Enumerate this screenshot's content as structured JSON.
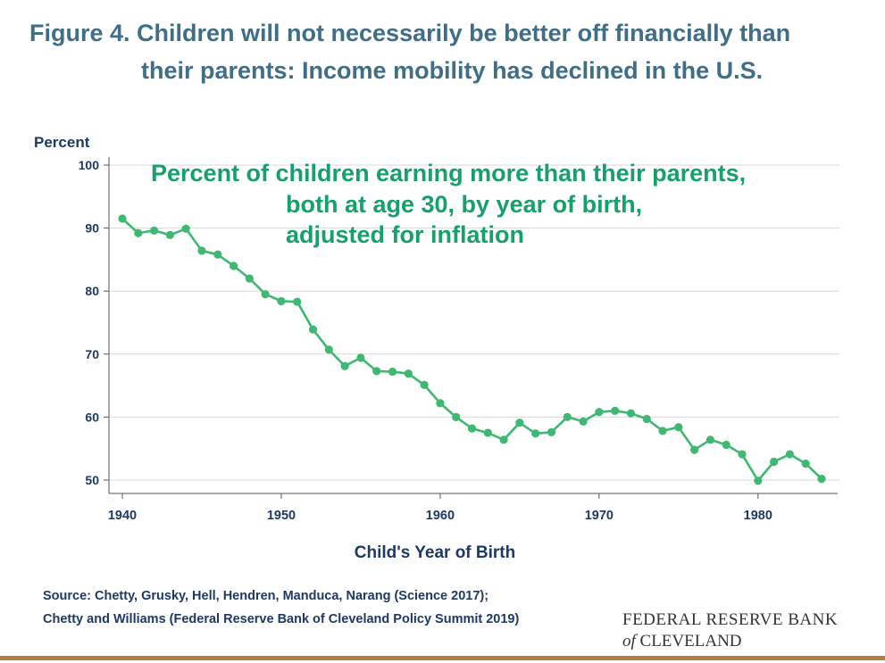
{
  "header": {
    "title_line1": "Figure 4. Children will not necessarily be better off financially than",
    "title_line2": "their parents: Income mobility has declined in the U.S."
  },
  "chart_data": {
    "type": "line",
    "ylabel": "Percent",
    "xlabel": "Child's Year of Birth",
    "annotation": [
      "Percent of children earning more than their parents,",
      "both at age 30, by year of birth,",
      "adjusted for inflation"
    ],
    "xlim": [
      1940,
      1984
    ],
    "ylim": [
      48,
      100
    ],
    "xticks": [
      1940,
      1950,
      1960,
      1970,
      1980
    ],
    "yticks": [
      50,
      60,
      70,
      80,
      90,
      100
    ],
    "grid": true,
    "series": [
      {
        "x": [
          1940,
          1941,
          1942,
          1943,
          1944,
          1945,
          1946,
          1947,
          1948,
          1949,
          1950,
          1951,
          1952,
          1953,
          1954,
          1955,
          1956,
          1957,
          1958,
          1959,
          1960,
          1961,
          1962,
          1963,
          1964,
          1965,
          1966,
          1967,
          1968,
          1969,
          1970,
          1971,
          1972,
          1973,
          1974,
          1975,
          1976,
          1977,
          1978,
          1979,
          1980,
          1981,
          1982,
          1983,
          1984
        ],
        "values": [
          91.5,
          89.2,
          89.6,
          88.9,
          89.9,
          86.4,
          85.8,
          84.0,
          82.0,
          79.5,
          78.4,
          78.3,
          73.9,
          70.7,
          68.1,
          69.4,
          67.3,
          67.2,
          66.9,
          65.1,
          62.2,
          60.0,
          58.2,
          57.5,
          56.4,
          59.1,
          57.4,
          57.6,
          60.0,
          59.3,
          60.8,
          61.0,
          60.6,
          59.7,
          57.8,
          58.4,
          54.8,
          56.4,
          55.6,
          54.1,
          49.9,
          52.9,
          54.1,
          52.6,
          50.2
        ]
      }
    ],
    "colors": {
      "line": "#3fb872",
      "annotation": "#16a06a",
      "axis_text": "#1f3864",
      "grid": "#d9d9d9"
    }
  },
  "source": {
    "line1": "Source: Chetty, Grusky, Hell, Hendren, Manduca, Narang (Science 2017);",
    "line2": "Chetty and Williams (Federal Reserve Bank of Cleveland Policy Summit 2019)"
  },
  "logo": {
    "line1": "FEDERAL RESERVE BANK",
    "line2_italic": "of",
    "line2_rest": " CLEVELAND"
  }
}
